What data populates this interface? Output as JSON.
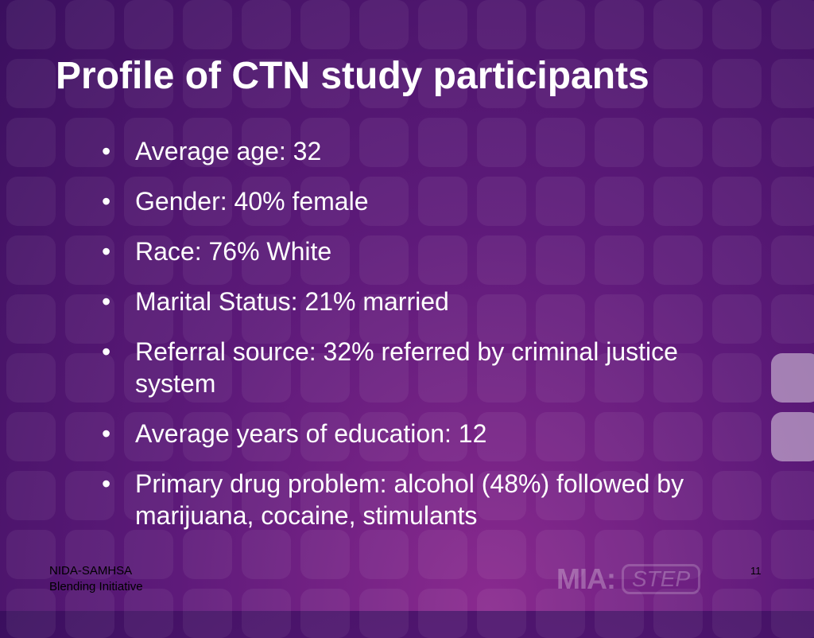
{
  "slide": {
    "title": "Profile of CTN study participants",
    "bullets": [
      {
        "text": "Average age: 32"
      },
      {
        "text": "Gender:  40% female"
      },
      {
        "text": "Race:  76% White"
      },
      {
        "text": "Marital Status:  21% married"
      },
      {
        "text": "Referral source:  32% referred by criminal justice system"
      },
      {
        "text": "Average years of education: 12"
      },
      {
        "text": "Primary drug problem:  alcohol (48%) followed by marijuana, cocaine, stimulants"
      }
    ]
  },
  "footer": {
    "org_line1": "NIDA-SAMHSA",
    "org_line2": "Blending Initiative",
    "page_number": "11",
    "logo_main": "MIA:",
    "logo_sub": "STEP"
  },
  "colors": {
    "background_center": "#8a2a8f",
    "background_edge": "#3a0f5e",
    "text": "#ffffff"
  }
}
